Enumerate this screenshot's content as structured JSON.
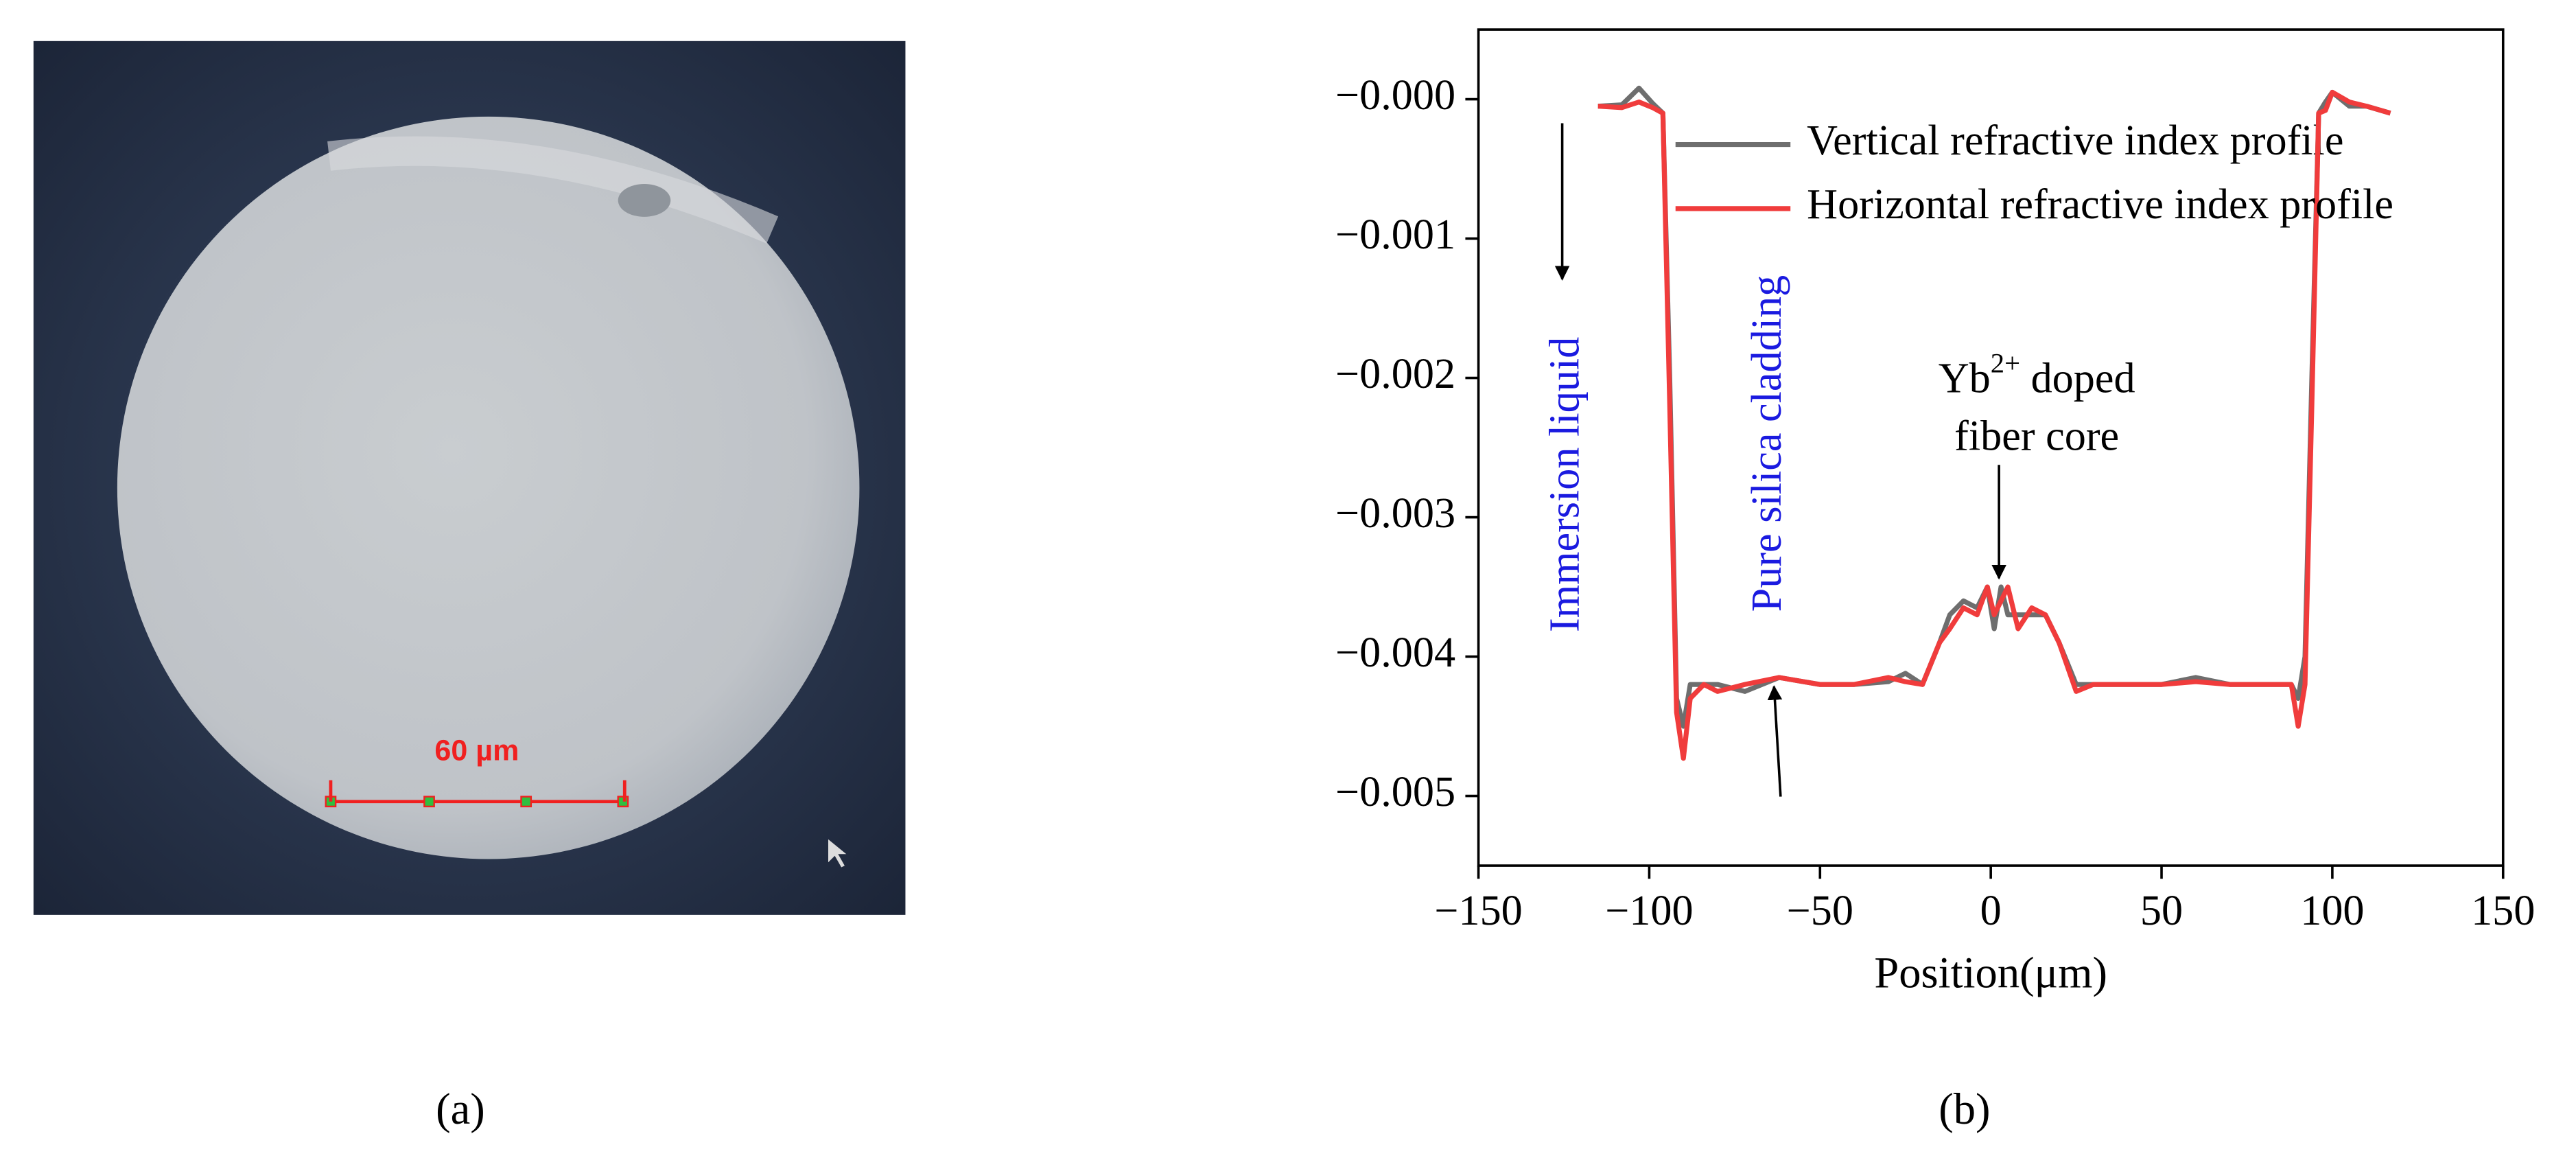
{
  "figure": {
    "label_a": "(a)",
    "label_b": "(b)",
    "scale_bar": "60 µm"
  },
  "chart_data": {
    "type": "line",
    "xlabel": "Position(μm)",
    "xlim": [
      -150,
      150
    ],
    "xticks": [
      {
        "value": -150,
        "label": "−150"
      },
      {
        "value": -100,
        "label": "−100"
      },
      {
        "value": -50,
        "label": "−50"
      },
      0,
      50,
      100,
      150
    ],
    "ylim": [
      -0.0055,
      0.0005
    ],
    "yticks": [
      {
        "value": 0,
        "label": "−0.000"
      },
      {
        "value": -0.001,
        "label": "−0.001"
      },
      {
        "value": -0.002,
        "label": "−0.002"
      },
      {
        "value": -0.003,
        "label": "−0.003"
      },
      {
        "value": -0.004,
        "label": "−0.004"
      },
      {
        "value": -0.005,
        "label": "−0.005"
      }
    ],
    "x": [
      -115,
      -108,
      -103,
      -99,
      -96,
      -94,
      -92,
      -90,
      -88,
      -84,
      -80,
      -72,
      -62,
      -50,
      -40,
      -30,
      -25,
      -20,
      -15,
      -12,
      -8,
      -4,
      -1,
      1,
      3,
      5,
      8,
      12,
      16,
      20,
      25,
      30,
      40,
      50,
      60,
      70,
      80,
      88,
      90,
      92,
      94,
      96,
      98,
      100,
      105,
      110,
      117
    ],
    "series": [
      {
        "name": "Vertical refractive index profile",
        "color": "#6e6e6e",
        "values": [
          -5e-05,
          -4e-05,
          8e-05,
          -3e-05,
          -0.0001,
          -0.002,
          -0.0043,
          -0.0045,
          -0.0042,
          -0.0042,
          -0.0042,
          -0.00425,
          -0.00415,
          -0.0042,
          -0.0042,
          -0.00418,
          -0.00412,
          -0.0042,
          -0.0039,
          -0.0037,
          -0.0036,
          -0.00365,
          -0.0035,
          -0.0038,
          -0.0035,
          -0.0037,
          -0.0037,
          -0.0037,
          -0.0037,
          -0.0039,
          -0.0042,
          -0.0042,
          -0.0042,
          -0.0042,
          -0.00415,
          -0.0042,
          -0.0042,
          -0.0042,
          -0.0043,
          -0.004,
          -0.002,
          -0.0001,
          -2e-05,
          5e-05,
          -5e-05,
          -5e-05,
          -0.0001
        ]
      },
      {
        "name": "Horizontal refractive index profile",
        "color": "#f03c3c",
        "values": [
          -5e-05,
          -6e-05,
          -2e-05,
          -6e-05,
          -0.0001,
          -0.0022,
          -0.0044,
          -0.00473,
          -0.0043,
          -0.0042,
          -0.00425,
          -0.0042,
          -0.00415,
          -0.0042,
          -0.0042,
          -0.00415,
          -0.00418,
          -0.0042,
          -0.0039,
          -0.0038,
          -0.00365,
          -0.0037,
          -0.0035,
          -0.0037,
          -0.0036,
          -0.0035,
          -0.0038,
          -0.00365,
          -0.0037,
          -0.0039,
          -0.00425,
          -0.0042,
          -0.0042,
          -0.0042,
          -0.00418,
          -0.0042,
          -0.0042,
          -0.0042,
          -0.0045,
          -0.0042,
          -0.0022,
          -0.0001,
          -8e-05,
          5e-05,
          -2e-05,
          -5e-05,
          -0.0001
        ]
      }
    ],
    "annotations": {
      "immersion": "Immersion liquid",
      "cladding": "Pure silica cladding",
      "core_a": "Yb",
      "core_sup": "2+",
      "core_b": " doped",
      "core_c": "fiber core"
    }
  }
}
